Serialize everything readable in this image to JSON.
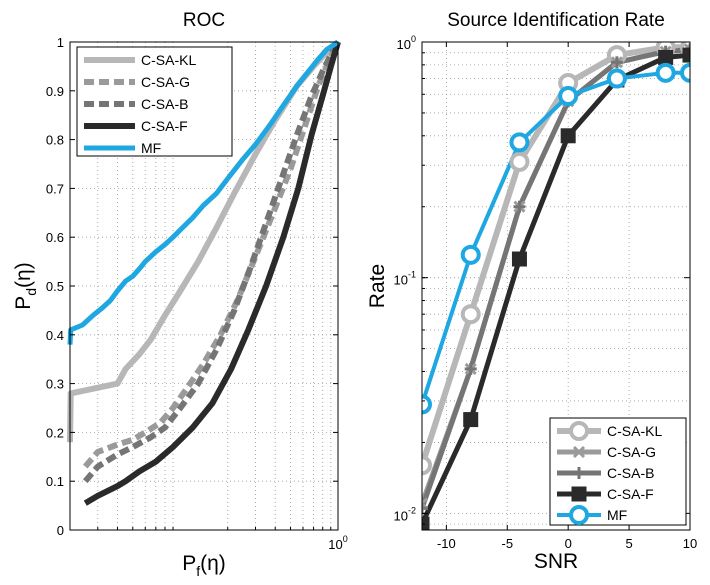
{
  "chart_data": [
    {
      "type": "line",
      "title": "ROC",
      "xlabel": "P_f(η)",
      "xlabel_main": "P",
      "xlabel_sub": "f",
      "xlabel_rest": "(η)",
      "ylabel": "P_d(η)",
      "ylabel_main": "P",
      "ylabel_sub": "d",
      "ylabel_rest": "(η)",
      "xscale": "log",
      "xlim": [
        0.02,
        1
      ],
      "ylim": [
        0,
        1
      ],
      "x_ticks": [
        {
          "value": 1,
          "base": "10",
          "exp": "0"
        }
      ],
      "y_ticks": [
        "0",
        "0.1",
        "0.2",
        "0.3",
        "0.4",
        "0.5",
        "0.6",
        "0.7",
        "0.8",
        "0.9",
        "1"
      ],
      "grid": true,
      "legend_position": "top-left",
      "series": [
        {
          "name": "C-SA-KL",
          "color": "#b7b7b7",
          "dash": "solid",
          "x": [
            0.02,
            0.0202,
            0.04,
            0.045,
            0.055,
            0.065,
            0.08,
            0.1,
            0.13,
            0.17,
            0.22,
            0.3,
            0.4,
            0.55,
            0.7,
            0.85,
            1.0
          ],
          "y": [
            0.18,
            0.28,
            0.3,
            0.33,
            0.36,
            0.39,
            0.44,
            0.49,
            0.55,
            0.62,
            0.69,
            0.77,
            0.84,
            0.91,
            0.95,
            0.98,
            1.0
          ]
        },
        {
          "name": "C-SA-G",
          "color": "#9a9a9a",
          "dash": "dash",
          "x": [
            0.025,
            0.03,
            0.04,
            0.05,
            0.06,
            0.075,
            0.09,
            0.11,
            0.14,
            0.18,
            0.23,
            0.3,
            0.4,
            0.5,
            0.62,
            0.75,
            0.9,
            1.0
          ],
          "y": [
            0.13,
            0.16,
            0.175,
            0.185,
            0.2,
            0.22,
            0.25,
            0.29,
            0.34,
            0.4,
            0.47,
            0.56,
            0.66,
            0.74,
            0.83,
            0.91,
            0.97,
            1.0
          ]
        },
        {
          "name": "C-SA-B",
          "color": "#757575",
          "dash": "dash",
          "x": [
            0.025,
            0.03,
            0.04,
            0.05,
            0.065,
            0.08,
            0.1,
            0.13,
            0.17,
            0.22,
            0.28,
            0.36,
            0.45,
            0.55,
            0.68,
            0.8,
            0.92,
            1.0
          ],
          "y": [
            0.1,
            0.13,
            0.155,
            0.17,
            0.19,
            0.21,
            0.25,
            0.3,
            0.37,
            0.45,
            0.54,
            0.64,
            0.73,
            0.81,
            0.89,
            0.94,
            0.98,
            1.0
          ]
        },
        {
          "name": "C-SA-F",
          "color": "#2a2a2a",
          "dash": "solid",
          "x": [
            0.025,
            0.03,
            0.04,
            0.045,
            0.055,
            0.07,
            0.09,
            0.12,
            0.16,
            0.21,
            0.27,
            0.35,
            0.45,
            0.56,
            0.68,
            0.8,
            0.92,
            1.0
          ],
          "y": [
            0.055,
            0.07,
            0.09,
            0.1,
            0.12,
            0.14,
            0.17,
            0.21,
            0.26,
            0.33,
            0.41,
            0.5,
            0.6,
            0.7,
            0.81,
            0.89,
            0.96,
            1.0
          ]
        },
        {
          "name": "MF",
          "color": "#1ea7e1",
          "dash": "solid",
          "x": [
            0.02,
            0.0202,
            0.024,
            0.028,
            0.032,
            0.036,
            0.04,
            0.045,
            0.05,
            0.055,
            0.06,
            0.07,
            0.08,
            0.09,
            0.1,
            0.12,
            0.14,
            0.17,
            0.2,
            0.25,
            0.3,
            0.37,
            0.45,
            0.55,
            0.65,
            0.75,
            0.85,
            0.95,
            1.0
          ],
          "y": [
            0.38,
            0.41,
            0.42,
            0.44,
            0.455,
            0.47,
            0.49,
            0.51,
            0.52,
            0.535,
            0.55,
            0.57,
            0.585,
            0.6,
            0.615,
            0.64,
            0.665,
            0.69,
            0.72,
            0.76,
            0.79,
            0.83,
            0.87,
            0.91,
            0.94,
            0.965,
            0.985,
            0.995,
            1.0
          ]
        }
      ]
    },
    {
      "type": "line",
      "title": "Source Identification Rate",
      "xlabel": "SNR",
      "ylabel": "Rate",
      "yscale": "log",
      "xlim": [
        -12,
        10
      ],
      "ylim": [
        0.0085,
        1
      ],
      "x_ticks": [
        "-10",
        "-5",
        "0",
        "5",
        "10"
      ],
      "y_ticks": [
        {
          "value": 1,
          "base": "10",
          "exp": "0"
        },
        {
          "value": 0.1,
          "base": "10",
          "exp": "-1"
        },
        {
          "value": 0.01,
          "base": "10",
          "exp": "-2"
        }
      ],
      "grid": true,
      "legend_position": "bottom-right",
      "x": [
        -12,
        -8,
        -4,
        0,
        4,
        8,
        10
      ],
      "series": [
        {
          "name": "C-SA-KL",
          "color": "#b7b7b7",
          "marker": "circle",
          "values": [
            0.016,
            0.07,
            0.31,
            0.67,
            0.88,
            0.95,
            0.95
          ]
        },
        {
          "name": "C-SA-G",
          "color": "#9a9a9a",
          "marker": "x",
          "values": [
            0.011,
            0.041,
            0.2,
            0.56,
            0.82,
            0.91,
            0.93
          ]
        },
        {
          "name": "C-SA-B",
          "color": "#757575",
          "marker": "plus",
          "values": [
            0.0105,
            0.041,
            0.2,
            0.56,
            0.82,
            0.91,
            0.93
          ]
        },
        {
          "name": "C-SA-F",
          "color": "#2a2a2a",
          "marker": "square",
          "values": [
            0.009,
            0.025,
            0.12,
            0.4,
            0.69,
            0.86,
            0.88
          ]
        },
        {
          "name": "MF",
          "color": "#1ea7e1",
          "marker": "circle",
          "values": [
            0.029,
            0.125,
            0.375,
            0.59,
            0.7,
            0.74,
            0.74
          ]
        }
      ]
    }
  ]
}
